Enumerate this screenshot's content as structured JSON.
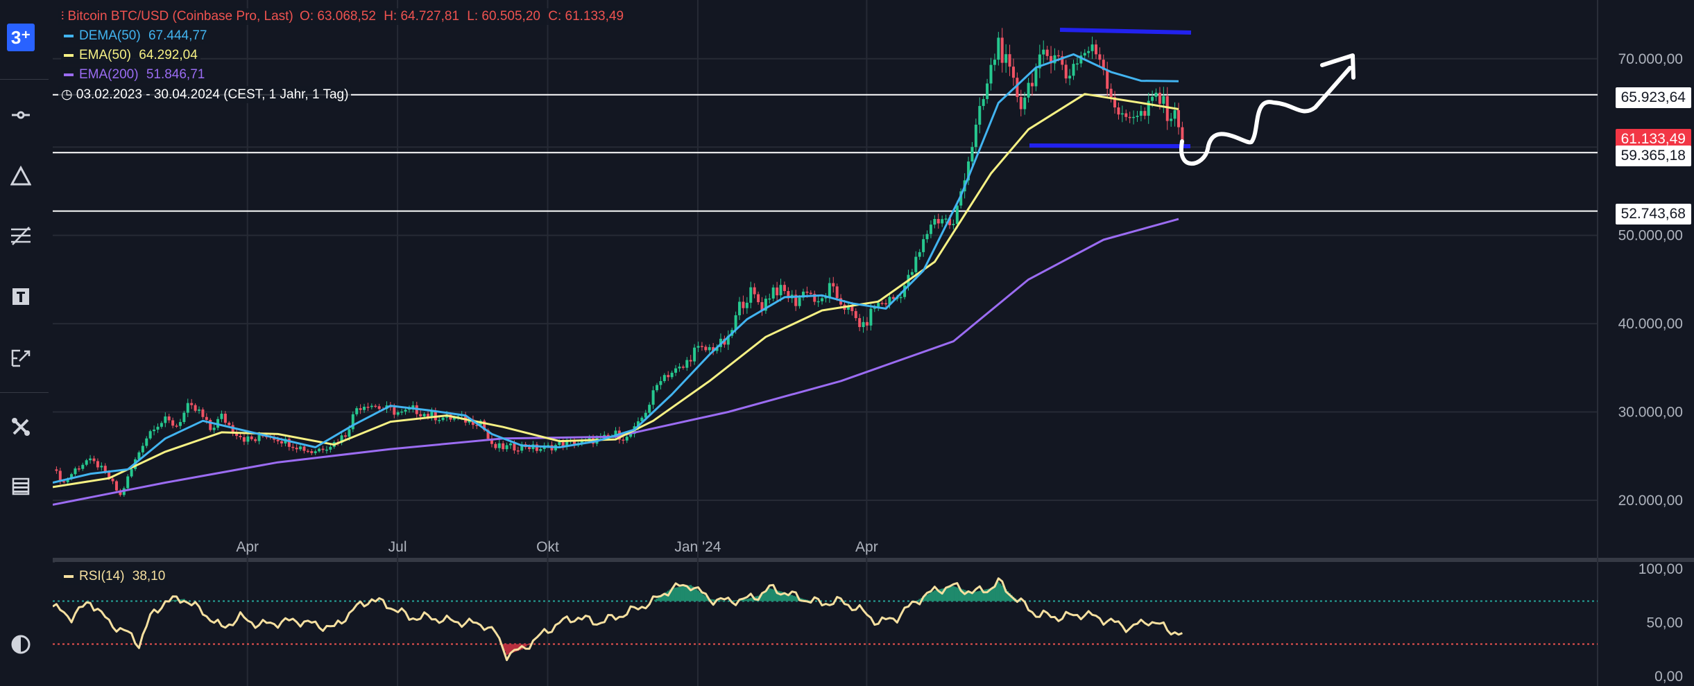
{
  "chart_data": {
    "type": "candlestick",
    "symbol": "Bitcoin BTC/USD (Coinbase Pro, Last)",
    "ohlc": {
      "open": "O: 63.068,52",
      "high": "H: 64.727,81",
      "low": "L: 60.505,20",
      "close": "C: 61.133,49"
    },
    "indicators": [
      {
        "label": "DEMA(50)",
        "value": "67.444,77",
        "color": "#42b4f0"
      },
      {
        "label": "EMA(50)",
        "value": "64.292,04",
        "color": "#f6f184"
      },
      {
        "label": "EMA(200)",
        "value": "51.846,71",
        "color": "#9b6cf2"
      }
    ],
    "period": "03.02.2023 - 30.04.2024   (CEST, 1 Jahr, 1 Tag)",
    "x_ticks": [
      "Apr",
      "Jul",
      "Okt",
      "Jan '24",
      "Apr"
    ],
    "y_ticks": [
      "70.000,00",
      "60.000,00",
      "50.000,00",
      "40.000,00",
      "30.000,00",
      "20.000,00"
    ],
    "y_range": [
      14000,
      77000
    ],
    "horizontal_lines": [
      {
        "label": "65.923,64",
        "value": 65923.64
      },
      {
        "label": "59.365,18",
        "value": 59365.18
      },
      {
        "label": "52.743,68",
        "value": 52743.68
      }
    ],
    "last_price": {
      "label": "61.133,49",
      "value": 61133.49
    },
    "close_path": [
      [
        0,
        23500
      ],
      [
        3,
        22000
      ],
      [
        6,
        23500
      ],
      [
        9,
        24500
      ],
      [
        12,
        24000
      ],
      [
        15,
        22500
      ],
      [
        18,
        20500
      ],
      [
        21,
        23500
      ],
      [
        24,
        26500
      ],
      [
        27,
        28500
      ],
      [
        30,
        29000
      ],
      [
        33,
        28500
      ],
      [
        36,
        30500
      ],
      [
        39,
        30000
      ],
      [
        42,
        28000
      ],
      [
        45,
        29500
      ],
      [
        48,
        28000
      ],
      [
        51,
        27000
      ],
      [
        54,
        26800
      ],
      [
        57,
        27500
      ],
      [
        60,
        27000
      ],
      [
        63,
        26500
      ],
      [
        66,
        26000
      ],
      [
        69,
        25500
      ],
      [
        72,
        26000
      ],
      [
        75,
        26500
      ],
      [
        78,
        27500
      ],
      [
        81,
        30500
      ],
      [
        84,
        31000
      ],
      [
        87,
        30500
      ],
      [
        90,
        30200
      ],
      [
        93,
        29800
      ],
      [
        96,
        30300
      ],
      [
        99,
        29800
      ],
      [
        102,
        29500
      ],
      [
        105,
        29300
      ],
      [
        108,
        29300
      ],
      [
        111,
        29000
      ],
      [
        114,
        29000
      ],
      [
        117,
        26000
      ],
      [
        120,
        26000
      ],
      [
        123,
        26000
      ],
      [
        126,
        26200
      ],
      [
        129,
        25800
      ],
      [
        132,
        26000
      ],
      [
        135,
        26300
      ],
      [
        138,
        26500
      ],
      [
        141,
        26500
      ],
      [
        144,
        26800
      ],
      [
        147,
        27000
      ],
      [
        150,
        27500
      ],
      [
        153,
        27000
      ],
      [
        156,
        28500
      ],
      [
        159,
        31000
      ],
      [
        162,
        34000
      ],
      [
        165,
        34500
      ],
      [
        168,
        35000
      ],
      [
        171,
        37000
      ],
      [
        174,
        37000
      ],
      [
        177,
        37500
      ],
      [
        180,
        38000
      ],
      [
        183,
        42000
      ],
      [
        186,
        43500
      ],
      [
        189,
        42000
      ],
      [
        192,
        44000
      ],
      [
        195,
        43500
      ],
      [
        198,
        42500
      ],
      [
        201,
        44000
      ],
      [
        204,
        42000
      ],
      [
        207,
        44000
      ],
      [
        210,
        42500
      ],
      [
        213,
        41000
      ],
      [
        216,
        39500
      ],
      [
        219,
        42000
      ],
      [
        222,
        42500
      ],
      [
        225,
        43000
      ],
      [
        228,
        45000
      ],
      [
        231,
        48000
      ],
      [
        234,
        51500
      ],
      [
        237,
        52000
      ],
      [
        240,
        51000
      ],
      [
        243,
        57000
      ],
      [
        246,
        62000
      ],
      [
        249,
        67000
      ],
      [
        252,
        72000
      ],
      [
        255,
        68000
      ],
      [
        258,
        65000
      ],
      [
        261,
        68000
      ],
      [
        264,
        70000
      ],
      [
        267,
        71000
      ],
      [
        270,
        68000
      ],
      [
        273,
        70000
      ],
      [
        276,
        71000
      ],
      [
        279,
        70500
      ],
      [
        282,
        66000
      ],
      [
        285,
        63000
      ],
      [
        288,
        64000
      ],
      [
        291,
        63500
      ],
      [
        294,
        66000
      ],
      [
        297,
        64000
      ],
      [
        300,
        63000
      ],
      [
        301,
        61133
      ]
    ],
    "dema50_path": [
      [
        0,
        22000
      ],
      [
        10,
        23000
      ],
      [
        20,
        23500
      ],
      [
        30,
        27000
      ],
      [
        40,
        29000
      ],
      [
        50,
        28000
      ],
      [
        60,
        27000
      ],
      [
        70,
        26000
      ],
      [
        80,
        28500
      ],
      [
        90,
        30700
      ],
      [
        100,
        30200
      ],
      [
        110,
        29600
      ],
      [
        117,
        27500
      ],
      [
        125,
        26200
      ],
      [
        135,
        26000
      ],
      [
        145,
        26700
      ],
      [
        155,
        28000
      ],
      [
        165,
        32000
      ],
      [
        175,
        36500
      ],
      [
        185,
        40500
      ],
      [
        195,
        43000
      ],
      [
        205,
        43200
      ],
      [
        213,
        42300
      ],
      [
        222,
        41700
      ],
      [
        232,
        46000
      ],
      [
        242,
        54500
      ],
      [
        252,
        65000
      ],
      [
        262,
        69000
      ],
      [
        272,
        70500
      ],
      [
        282,
        68500
      ],
      [
        290,
        67500
      ],
      [
        300,
        67445
      ]
    ],
    "ema50_path": [
      [
        0,
        21500
      ],
      [
        15,
        22500
      ],
      [
        30,
        25500
      ],
      [
        45,
        27700
      ],
      [
        60,
        27500
      ],
      [
        75,
        26300
      ],
      [
        90,
        28900
      ],
      [
        105,
        29600
      ],
      [
        120,
        28300
      ],
      [
        135,
        26700
      ],
      [
        150,
        26900
      ],
      [
        160,
        29000
      ],
      [
        175,
        33500
      ],
      [
        190,
        38500
      ],
      [
        205,
        41500
      ],
      [
        220,
        42500
      ],
      [
        235,
        47000
      ],
      [
        250,
        57000
      ],
      [
        260,
        62000
      ],
      [
        275,
        66000
      ],
      [
        290,
        65000
      ],
      [
        300,
        64292
      ]
    ],
    "ema200_path": [
      [
        0,
        19500
      ],
      [
        30,
        22000
      ],
      [
        60,
        24300
      ],
      [
        90,
        25800
      ],
      [
        120,
        27000
      ],
      [
        150,
        27200
      ],
      [
        180,
        30000
      ],
      [
        210,
        33500
      ],
      [
        240,
        38000
      ],
      [
        260,
        45000
      ],
      [
        280,
        49500
      ],
      [
        300,
        51847
      ]
    ],
    "rsi": {
      "label": "RSI(14)",
      "value": "38,10",
      "color": "#f6e0a0",
      "y_ticks": [
        "100,00",
        "50,00",
        "0,00"
      ],
      "levels": [
        70,
        30
      ],
      "path": [
        [
          0,
          65
        ],
        [
          5,
          55
        ],
        [
          10,
          70
        ],
        [
          15,
          50
        ],
        [
          20,
          40
        ],
        [
          23,
          30
        ],
        [
          26,
          55
        ],
        [
          30,
          70
        ],
        [
          35,
          72
        ],
        [
          40,
          60
        ],
        [
          45,
          45
        ],
        [
          50,
          55
        ],
        [
          55,
          48
        ],
        [
          60,
          50
        ],
        [
          65,
          52
        ],
        [
          70,
          48
        ],
        [
          75,
          45
        ],
        [
          80,
          62
        ],
        [
          85,
          72
        ],
        [
          90,
          65
        ],
        [
          95,
          55
        ],
        [
          100,
          55
        ],
        [
          105,
          52
        ],
        [
          110,
          50
        ],
        [
          115,
          48
        ],
        [
          118,
          40
        ],
        [
          121,
          20
        ],
        [
          125,
          25
        ],
        [
          130,
          38
        ],
        [
          135,
          50
        ],
        [
          140,
          55
        ],
        [
          145,
          50
        ],
        [
          150,
          55
        ],
        [
          155,
          62
        ],
        [
          160,
          70
        ],
        [
          165,
          82
        ],
        [
          170,
          85
        ],
        [
          175,
          72
        ],
        [
          180,
          70
        ],
        [
          185,
          72
        ],
        [
          188,
          75
        ],
        [
          191,
          82
        ],
        [
          195,
          78
        ],
        [
          200,
          72
        ],
        [
          205,
          68
        ],
        [
          210,
          70
        ],
        [
          215,
          62
        ],
        [
          220,
          50
        ],
        [
          225,
          55
        ],
        [
          230,
          70
        ],
        [
          235,
          80
        ],
        [
          240,
          84
        ],
        [
          245,
          78
        ],
        [
          250,
          82
        ],
        [
          252,
          88
        ],
        [
          256,
          74
        ],
        [
          262,
          58
        ],
        [
          268,
          55
        ],
        [
          275,
          58
        ],
        [
          281,
          52
        ],
        [
          287,
          45
        ],
        [
          292,
          52
        ],
        [
          296,
          46
        ],
        [
          301,
          38
        ]
      ]
    }
  }
}
